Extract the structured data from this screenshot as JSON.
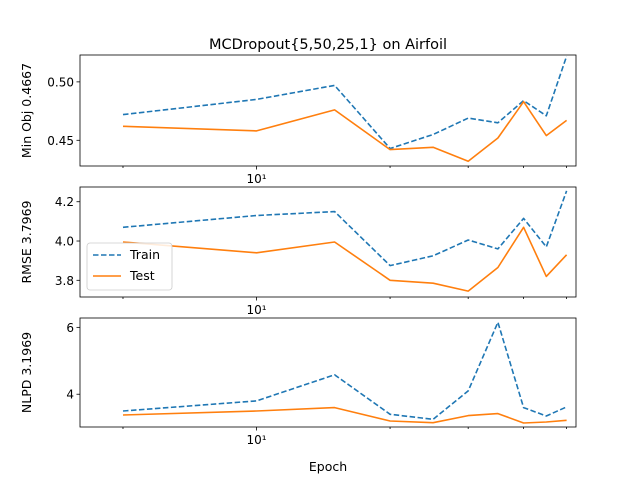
{
  "title": "MCDropout{5,50,25,1} on Airfoil",
  "xlabel": "Epoch",
  "x_tick_label": "10¹",
  "legend": {
    "entries": [
      "Train",
      "Test"
    ]
  },
  "chart_data": [
    {
      "type": "line",
      "title": "MCDropout{5,50,25,1} on Airfoil",
      "ylabel": "Min Obj 0.4667",
      "xlabel": "",
      "x_scale": "log",
      "x": [
        5,
        10,
        15,
        20,
        25,
        30,
        35,
        40,
        45,
        50
      ],
      "ylim": [
        0.428,
        0.523
      ],
      "yticks": [
        0.45,
        0.5
      ],
      "ytick_labels": [
        "0.45",
        "0.50"
      ],
      "colors": {
        "Train": "#1f77b4",
        "Test": "#ff7f0e"
      },
      "series": [
        {
          "name": "Train",
          "values": [
            0.472,
            0.485,
            0.497,
            0.443,
            0.455,
            0.469,
            0.465,
            0.484,
            0.471,
            0.522
          ]
        },
        {
          "name": "Test",
          "values": [
            0.462,
            0.458,
            0.476,
            0.442,
            0.444,
            0.432,
            0.452,
            0.483,
            0.454,
            0.467
          ]
        }
      ]
    },
    {
      "type": "line",
      "ylabel": "RMSE 3.7969",
      "xlabel": "",
      "x_scale": "log",
      "x": [
        5,
        10,
        15,
        20,
        25,
        30,
        35,
        40,
        45,
        50
      ],
      "ylim": [
        3.715,
        4.275
      ],
      "yticks": [
        3.8,
        4.0,
        4.2
      ],
      "ytick_labels": [
        "3.8",
        "4.0",
        "4.2"
      ],
      "legend_placement": "center-left",
      "colors": {
        "Train": "#1f77b4",
        "Test": "#ff7f0e"
      },
      "series": [
        {
          "name": "Train",
          "values": [
            4.07,
            4.13,
            4.15,
            3.875,
            3.925,
            4.005,
            3.96,
            4.115,
            3.97,
            4.255
          ]
        },
        {
          "name": "Test",
          "values": [
            3.995,
            3.94,
            3.995,
            3.8,
            3.785,
            3.745,
            3.865,
            4.07,
            3.82,
            3.93
          ]
        }
      ]
    },
    {
      "type": "line",
      "ylabel": "NLPD 3.1969",
      "xlabel": "Epoch",
      "x_scale": "log",
      "x": [
        5,
        10,
        15,
        20,
        25,
        30,
        35,
        40,
        45,
        50
      ],
      "ylim": [
        3.02,
        6.28
      ],
      "yticks": [
        4,
        6
      ],
      "ytick_labels": [
        "4",
        "6"
      ],
      "colors": {
        "Train": "#1f77b4",
        "Test": "#ff7f0e"
      },
      "series": [
        {
          "name": "Train",
          "values": [
            3.5,
            3.8,
            4.58,
            3.4,
            3.25,
            4.1,
            6.15,
            3.6,
            3.35,
            3.62
          ]
        },
        {
          "name": "Test",
          "values": [
            3.38,
            3.5,
            3.6,
            3.2,
            3.15,
            3.36,
            3.42,
            3.14,
            3.17,
            3.22
          ]
        }
      ]
    }
  ]
}
